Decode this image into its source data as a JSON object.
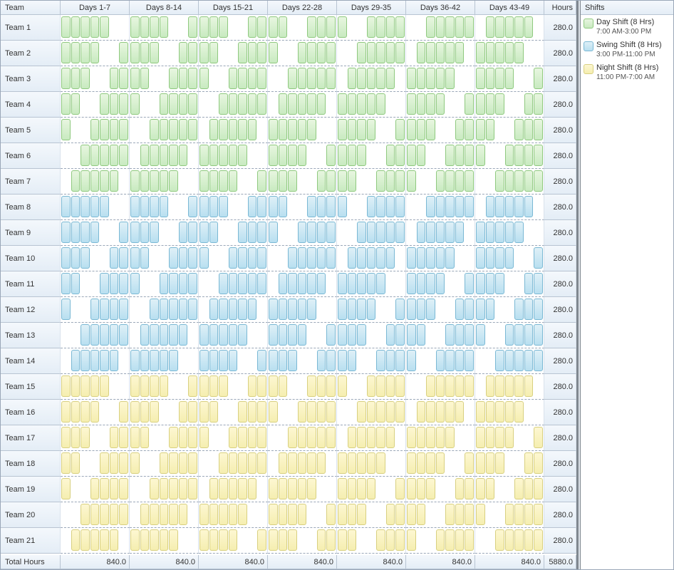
{
  "columns": {
    "team": "Team",
    "weeks": [
      "Days 1-7",
      "Days 8-14",
      "Days 15-21",
      "Days 22-28",
      "Days 29-35",
      "Days 36-42",
      "Days 43-49"
    ],
    "hours": "Hours"
  },
  "shift_colors": {
    "D": "green",
    "S": "blue",
    "N": "yellow"
  },
  "teams": [
    {
      "name": "Team 1",
      "shift": "D",
      "hours": "280.0",
      "pattern": "1111100 1111001 1110011 1100111 1001111 0011111 0111110"
    },
    {
      "name": "Team 2",
      "shift": "D",
      "hours": "280.0",
      "pattern": "1111001 1110011 1100111 1001111 0011111 0111110 1111100"
    },
    {
      "name": "Team 3",
      "shift": "D",
      "hours": "280.0",
      "pattern": "1110011 1100111 1001111 0011111 0111110 1111100 1111001"
    },
    {
      "name": "Team 4",
      "shift": "D",
      "hours": "280.0",
      "pattern": "1100111 1001111 0011111 0111110 1111100 1111001 1110011"
    },
    {
      "name": "Team 5",
      "shift": "D",
      "hours": "280.0",
      "pattern": "1001111 0011111 0111110 1111100 1111001 1110011 1100111"
    },
    {
      "name": "Team 6",
      "shift": "D",
      "hours": "280.0",
      "pattern": "0011111 0111110 1111100 1111001 1110011 1100111 1001111"
    },
    {
      "name": "Team 7",
      "shift": "D",
      "hours": "280.0",
      "pattern": "0111110 1111100 1111001 1110011 1100111 1001111 0011111"
    },
    {
      "name": "Team 8",
      "shift": "S",
      "hours": "280.0",
      "pattern": "1111100 1111001 1110011 1100111 1001111 0011111 0111110"
    },
    {
      "name": "Team 9",
      "shift": "S",
      "hours": "280.0",
      "pattern": "1111001 1110011 1100111 1001111 0011111 0111110 1111100"
    },
    {
      "name": "Team 10",
      "shift": "S",
      "hours": "280.0",
      "pattern": "1110011 1100111 1001111 0011111 0111110 1111100 1111001"
    },
    {
      "name": "Team 11",
      "shift": "S",
      "hours": "280.0",
      "pattern": "1100111 1001111 0011111 0111110 1111100 1111001 1110011"
    },
    {
      "name": "Team 12",
      "shift": "S",
      "hours": "280.0",
      "pattern": "1001111 0011111 0111110 1111100 1111001 1110011 1100111"
    },
    {
      "name": "Team 13",
      "shift": "S",
      "hours": "280.0",
      "pattern": "0011111 0111110 1111100 1111001 1110011 1100111 1001111"
    },
    {
      "name": "Team 14",
      "shift": "S",
      "hours": "280.0",
      "pattern": "0111110 1111100 1111001 1110011 1100111 1001111 0011111"
    },
    {
      "name": "Team 15",
      "shift": "N",
      "hours": "280.0",
      "pattern": "1111100 1111001 1110011 1100111 1001111 0011111 0111110"
    },
    {
      "name": "Team 16",
      "shift": "N",
      "hours": "280.0",
      "pattern": "1111001 1110011 1100111 1001111 0011111 0111110 1111100"
    },
    {
      "name": "Team 17",
      "shift": "N",
      "hours": "280.0",
      "pattern": "1110011 1100111 1001111 0011111 0111110 1111100 1111001"
    },
    {
      "name": "Team 18",
      "shift": "N",
      "hours": "280.0",
      "pattern": "1100111 1001111 0011111 0111110 1111100 1111001 1110011"
    },
    {
      "name": "Team 19",
      "shift": "N",
      "hours": "280.0",
      "pattern": "1001111 0011111 0111110 1111100 1111001 1110011 1100111"
    },
    {
      "name": "Team 20",
      "shift": "N",
      "hours": "280.0",
      "pattern": "0011111 0111110 1111100 1111001 1110011 1100111 1001111"
    },
    {
      "name": "Team 21",
      "shift": "N",
      "hours": "280.0",
      "pattern": "0111110 1111100 1111001 1110011 1100111 1001111 0011111"
    }
  ],
  "footer": {
    "label": "Total Hours",
    "week_totals": [
      "840.0",
      "840.0",
      "840.0",
      "840.0",
      "840.0",
      "840.0",
      "840.0"
    ],
    "grand_total": "5880.0"
  },
  "legend": {
    "title": "Shifts",
    "items": [
      {
        "color": "green",
        "label": "Day Shift (8 Hrs)",
        "sub": "7:00 AM-3:00 PM"
      },
      {
        "color": "blue",
        "label": "Swing Shift (8 Hrs)",
        "sub": "3:00 PM-11:00 PM"
      },
      {
        "color": "yellow",
        "label": "Night Shift (8 Hrs)",
        "sub": "11:00 PM-7:00 AM"
      }
    ]
  },
  "style": {
    "header_bg_top": "#f4f8fc",
    "header_bg_bot": "#e4edf6",
    "border": "#b8c4d2",
    "row_dash": "#9aa7b8",
    "green": {
      "fill_top": "#e8f6e0",
      "fill_bot": "#c8eac0",
      "border": "#8fc97f"
    },
    "blue": {
      "fill_top": "#dff0f7",
      "fill_bot": "#b8dff0",
      "border": "#7ab8d4"
    },
    "yellow": {
      "fill_top": "#fdf7d2",
      "fill_bot": "#f5eeb0",
      "border": "#d8d080"
    }
  }
}
